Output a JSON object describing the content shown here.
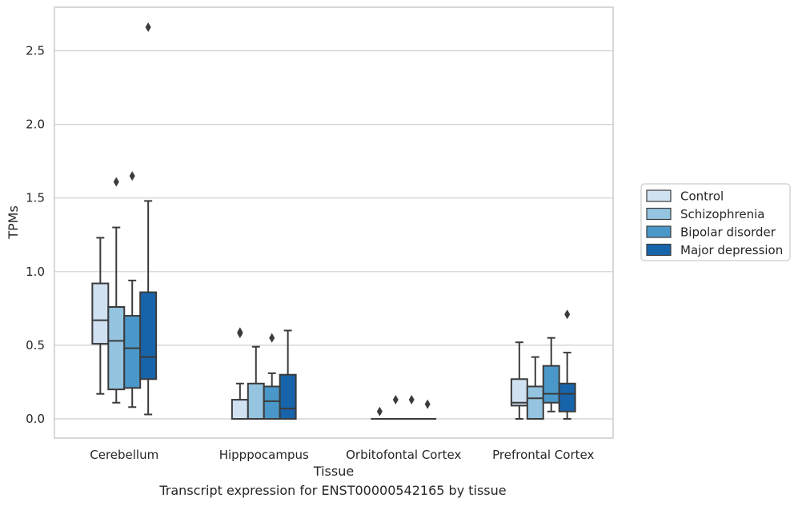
{
  "chart_data": {
    "type": "box",
    "xlabel": "Tissue",
    "ylabel": "TPMs",
    "caption": "Transcript expression for ENST00000542165 by tissue",
    "categories": [
      "Cerebellum",
      "Hipppocampus",
      "Orbitofontal Cortex",
      "Prefrontal Cortex"
    ],
    "ylim": [
      -0.13,
      2.8
    ],
    "yticks": [
      0.0,
      0.5,
      1.0,
      1.5,
      2.0,
      2.5
    ],
    "ytick_labels": [
      "0.0",
      "0.5",
      "1.0",
      "1.5",
      "2.0",
      "2.5"
    ],
    "grid": "horizontal",
    "legend_position": "right",
    "series": [
      {
        "name": "Control",
        "color": "#d0e1f2",
        "boxes": [
          {
            "min": 0.17,
            "q1": 0.51,
            "median": 0.67,
            "q3": 0.92,
            "max": 1.23,
            "outliers": []
          },
          {
            "min": 0.0,
            "q1": 0.0,
            "median": 0.0,
            "q3": 0.13,
            "max": 0.24,
            "outliers": [
              0.58,
              0.59
            ]
          },
          {
            "min": 0.0,
            "q1": 0.0,
            "median": 0.0,
            "q3": 0.0,
            "max": 0.0,
            "outliers": [
              0.05
            ]
          },
          {
            "min": 0.0,
            "q1": 0.09,
            "median": 0.11,
            "q3": 0.27,
            "max": 0.52,
            "outliers": []
          }
        ]
      },
      {
        "name": "Schizophrenia",
        "color": "#94c4df",
        "boxes": [
          {
            "min": 0.11,
            "q1": 0.2,
            "median": 0.53,
            "q3": 0.76,
            "max": 1.3,
            "outliers": [
              1.61
            ]
          },
          {
            "min": 0.0,
            "q1": 0.0,
            "median": 0.0,
            "q3": 0.24,
            "max": 0.49,
            "outliers": []
          },
          {
            "min": 0.0,
            "q1": 0.0,
            "median": 0.0,
            "q3": 0.0,
            "max": 0.0,
            "outliers": [
              0.13
            ]
          },
          {
            "min": 0.0,
            "q1": 0.0,
            "median": 0.14,
            "q3": 0.22,
            "max": 0.42,
            "outliers": []
          }
        ]
      },
      {
        "name": "Bipolar disorder",
        "color": "#4a98c9",
        "boxes": [
          {
            "min": 0.08,
            "q1": 0.21,
            "median": 0.48,
            "q3": 0.7,
            "max": 0.94,
            "outliers": [
              1.65
            ]
          },
          {
            "min": 0.0,
            "q1": 0.0,
            "median": 0.12,
            "q3": 0.22,
            "max": 0.31,
            "outliers": [
              0.55
            ]
          },
          {
            "min": 0.0,
            "q1": 0.0,
            "median": 0.0,
            "q3": 0.0,
            "max": 0.0,
            "outliers": [
              0.13
            ]
          },
          {
            "min": 0.05,
            "q1": 0.11,
            "median": 0.17,
            "q3": 0.36,
            "max": 0.55,
            "outliers": []
          }
        ]
      },
      {
        "name": "Major depression",
        "color": "#1764ab",
        "boxes": [
          {
            "min": 0.03,
            "q1": 0.27,
            "median": 0.42,
            "q3": 0.86,
            "max": 1.48,
            "outliers": [
              2.66
            ]
          },
          {
            "min": 0.0,
            "q1": 0.0,
            "median": 0.07,
            "q3": 0.3,
            "max": 0.6,
            "outliers": []
          },
          {
            "min": 0.0,
            "q1": 0.0,
            "median": 0.0,
            "q3": 0.0,
            "max": 0.0,
            "outliers": [
              0.1
            ]
          },
          {
            "min": 0.0,
            "q1": 0.05,
            "median": 0.17,
            "q3": 0.24,
            "max": 0.45,
            "outliers": [
              0.71
            ]
          }
        ]
      }
    ]
  }
}
